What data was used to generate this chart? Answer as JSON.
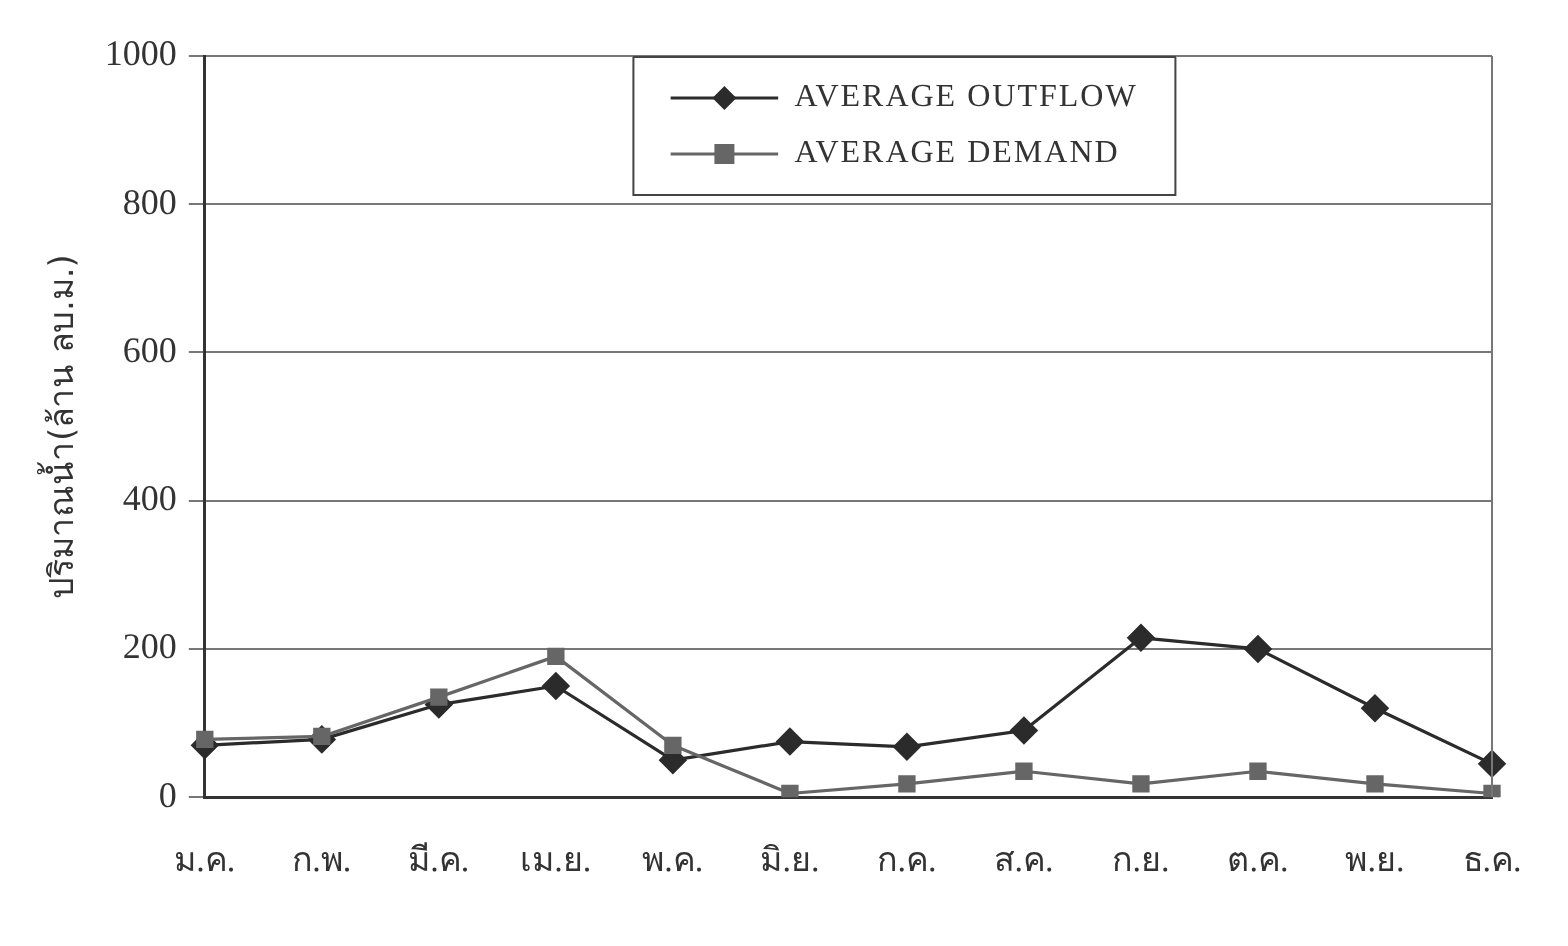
{
  "chart_data": {
    "type": "line",
    "ylabel": "ปริมาณน้ำ(ล้าน ลบ.ม.)",
    "categories": [
      "ม.ค.",
      "ก.พ.",
      "มี.ค.",
      "เม.ย.",
      "พ.ค.",
      "มิ.ย.",
      "ก.ค.",
      "ส.ค.",
      "ก.ย.",
      "ต.ค.",
      "พ.ย.",
      "ธ.ค."
    ],
    "series": [
      {
        "name": "AVERAGE  OUTFLOW",
        "color": "#2b2b2b",
        "marker": "diamond",
        "values": [
          70,
          78,
          125,
          150,
          50,
          75,
          68,
          90,
          215,
          200,
          120,
          45
        ]
      },
      {
        "name": "AVERAGE DEMAND",
        "color": "#666666",
        "marker": "square",
        "values": [
          78,
          82,
          135,
          190,
          70,
          5,
          18,
          35,
          18,
          35,
          18,
          5
        ]
      }
    ],
    "ylim": [
      0,
      1000
    ],
    "yticks": [
      0,
      200,
      400,
      600,
      800,
      1000
    ],
    "grid": "y",
    "legend": "top"
  }
}
